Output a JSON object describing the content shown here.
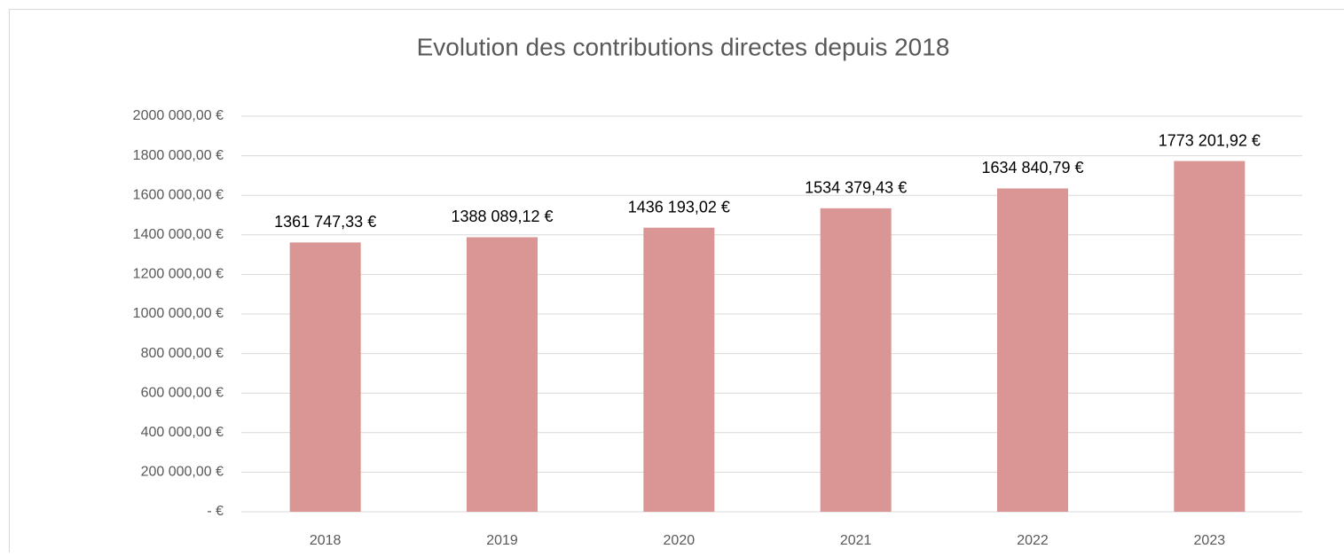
{
  "chart_data": {
    "type": "bar",
    "title": "Evolution des contributions directes depuis 2018",
    "categories": [
      "2018",
      "2019",
      "2020",
      "2021",
      "2022",
      "2023"
    ],
    "values": [
      1361747.33,
      1388089.12,
      1436193.02,
      1534379.43,
      1634840.79,
      1773201.92
    ],
    "value_labels": [
      "1361 747,33 €",
      "1388 089,12 €",
      "1436 193,02 €",
      "1534 379,43 €",
      "1634 840,79 €",
      "1773 201,92 €"
    ],
    "color": "#d99694",
    "ylim": [
      0,
      2000000
    ],
    "yticks": [
      {
        "value": 0,
        "label": "-  €"
      },
      {
        "value": 200000,
        "label": "200 000,00 €"
      },
      {
        "value": 400000,
        "label": "400 000,00 €"
      },
      {
        "value": 600000,
        "label": "600 000,00 €"
      },
      {
        "value": 800000,
        "label": "800 000,00 €"
      },
      {
        "value": 1000000,
        "label": "1000 000,00 €"
      },
      {
        "value": 1200000,
        "label": "1200 000,00 €"
      },
      {
        "value": 1400000,
        "label": "1400 000,00 €"
      },
      {
        "value": 1600000,
        "label": "1600 000,00 €"
      },
      {
        "value": 1800000,
        "label": "1800 000,00 €"
      },
      {
        "value": 2000000,
        "label": "2000 000,00 €"
      }
    ],
    "grid": true
  }
}
